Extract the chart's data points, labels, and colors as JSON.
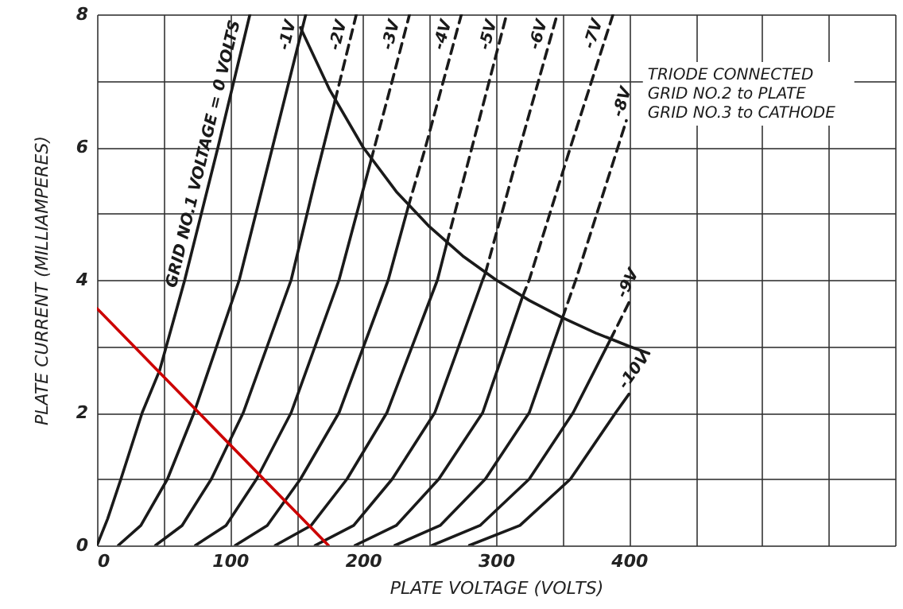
{
  "chart_data": {
    "type": "line",
    "xlabel": "PLATE VOLTAGE (VOLTS)",
    "ylabel": "PLATE CURRENT (MILLIAMPERES)",
    "xlim": [
      0,
      600
    ],
    "ylim": [
      0,
      8
    ],
    "xticks": [
      0,
      {
        "value": 50,
        "label": null
      },
      100,
      {
        "value": 150,
        "label": null
      },
      200,
      {
        "value": 250,
        "label": null
      },
      300,
      {
        "value": 350,
        "label": null
      },
      400,
      {
        "value": 450,
        "label": null
      },
      {
        "value": 500,
        "label": null
      },
      {
        "value": 550,
        "label": null
      },
      {
        "value": 600,
        "label": null
      }
    ],
    "yticks": [
      0,
      {
        "value": 1,
        "label": null
      },
      2,
      {
        "value": 3,
        "label": null
      },
      4,
      {
        "value": 5,
        "label": null
      },
      6,
      {
        "value": 7,
        "label": null
      },
      8
    ],
    "grid": true,
    "line_style": "solid",
    "annotations": [
      "TRIODE CONNECTED",
      "GRID NO.2 to PLATE",
      "GRID NO.3 to CATHODE"
    ],
    "series": [
      {
        "name": "GRID NO.1 VOLTAGE = 0 VOLTS",
        "color": "#1a1a1a",
        "x": [
          0,
          8,
          18,
          34,
          47,
          66,
          91,
          115
        ],
        "values": [
          0,
          0.4,
          1,
          2,
          2.63,
          4,
          6,
          8
        ]
      },
      {
        "name": "-1V",
        "color": "#1a1a1a",
        "x": [
          16,
          33,
          53,
          73,
          107,
          132,
          157
        ],
        "values": [
          0,
          0.3,
          1,
          2,
          4,
          6,
          8
        ]
      },
      {
        "color": "#1a1a1a",
        "x": [
          44,
          64,
          86,
          110,
          146,
          164,
          179
        ],
        "values": [
          0,
          0.3,
          1,
          2,
          4,
          5.5,
          6.7
        ]
      },
      {
        "name": "-2V",
        "color": "#1a1a1a",
        "line_style": "dashed",
        "x": [
          179,
          195
        ],
        "values": [
          6.7,
          8
        ]
      },
      {
        "color": "#1a1a1a",
        "x": [
          74,
          97,
          120,
          146,
          182,
          206
        ],
        "values": [
          0,
          0.3,
          1,
          2,
          4,
          5.8
        ]
      },
      {
        "name": "-3V",
        "color": "#1a1a1a",
        "line_style": "dashed",
        "x": [
          206,
          222,
          235
        ],
        "values": [
          5.8,
          7,
          8
        ]
      },
      {
        "color": "#1a1a1a",
        "x": [
          104,
          128,
          153,
          182,
          219,
          234
        ],
        "values": [
          0,
          0.3,
          1,
          2,
          4,
          5.1
        ]
      },
      {
        "name": "-4V",
        "color": "#1a1a1a",
        "line_style": "dashed",
        "x": [
          234,
          247,
          274
        ],
        "values": [
          5.1,
          6,
          8
        ]
      },
      {
        "color": "#1a1a1a",
        "x": [
          134,
          161,
          188,
          218,
          256,
          263
        ],
        "values": [
          0,
          0.3,
          1,
          2,
          4,
          4.55
        ]
      },
      {
        "name": "-5V",
        "color": "#1a1a1a",
        "line_style": "dashed",
        "x": [
          263,
          282,
          308
        ],
        "values": [
          4.55,
          6,
          8
        ]
      },
      {
        "color": "#1a1a1a",
        "x": [
          164,
          193,
          222,
          254,
          290,
          292
        ],
        "values": [
          0,
          0.3,
          1,
          2,
          4,
          4.1
        ]
      },
      {
        "name": "-6V",
        "color": "#1a1a1a",
        "line_style": "dashed",
        "x": [
          292,
          318,
          346
        ],
        "values": [
          4.1,
          6,
          8
        ]
      },
      {
        "color": "#1a1a1a",
        "x": [
          194,
          225,
          257,
          290,
          320
        ],
        "values": [
          0,
          0.3,
          1,
          2,
          3.75
        ]
      },
      {
        "name": "-7V",
        "color": "#1a1a1a",
        "line_style": "dashed",
        "x": [
          320,
          325,
          356,
          388
        ],
        "values": [
          3.75,
          4,
          6,
          8
        ]
      },
      {
        "color": "#1a1a1a",
        "x": [
          224,
          258,
          292,
          325,
          350
        ],
        "values": [
          0,
          0.3,
          1,
          2,
          3.43
        ]
      },
      {
        "name": "-8V",
        "color": "#1a1a1a",
        "line_style": "dashed",
        "x": [
          350,
          360,
          379,
          398
        ],
        "values": [
          3.43,
          4,
          5.2,
          6.4
        ]
      },
      {
        "color": "#1a1a1a",
        "x": [
          252,
          288,
          325,
          358,
          386
        ],
        "values": [
          0,
          0.3,
          1,
          2,
          3.1
        ]
      },
      {
        "name": "-9V",
        "color": "#1a1a1a",
        "line_style": "dashed",
        "x": [
          386,
          400
        ],
        "values": [
          3.1,
          3.66
        ]
      },
      {
        "name": "-10V",
        "color": "#1a1a1a",
        "x": [
          280,
          318,
          356,
          390,
          400
        ],
        "values": [
          0,
          0.3,
          1,
          2,
          2.28
        ]
      },
      {
        "color": "#1a1a1a",
        "x": [
          153,
          160,
          175,
          200,
          225,
          250,
          275,
          300,
          325,
          350,
          375,
          400,
          415
        ],
        "values": [
          7.8,
          7.5,
          6.86,
          6,
          5.33,
          4.8,
          4.36,
          4,
          3.69,
          3.43,
          3.2,
          3,
          2.89
        ]
      },
      {
        "color": "#cc0000",
        "x": [
          0,
          174
        ],
        "values": [
          3.57,
          0
        ]
      }
    ]
  }
}
